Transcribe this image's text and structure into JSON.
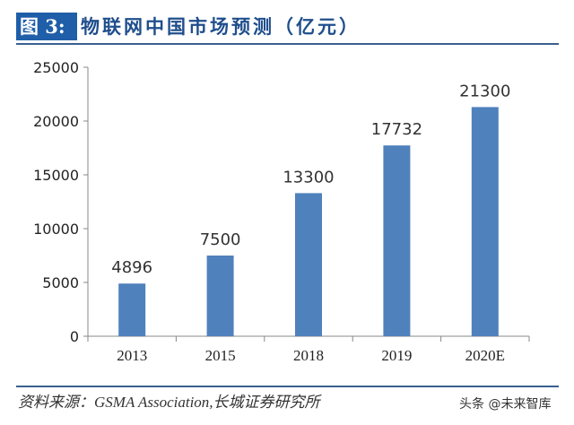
{
  "title": {
    "label": "图 3:",
    "text": "物联网中国市场预测（亿元）"
  },
  "source": "资料来源：GSMA Association,长城证券研究所",
  "watermark": "头条 @未来智库",
  "chart_data": {
    "type": "bar",
    "categories": [
      "2013",
      "2015",
      "2018",
      "2019",
      "2020E"
    ],
    "values": [
      4896,
      7500,
      13300,
      17732,
      21300
    ],
    "data_labels": [
      "4896",
      "7500",
      "13300",
      "17732",
      "21300"
    ],
    "ylim": [
      0,
      25000
    ],
    "yticks": [
      "0",
      "5000",
      "10000",
      "15000",
      "20000",
      "25000"
    ],
    "grid": false,
    "bar_color": "#4f81bd"
  }
}
